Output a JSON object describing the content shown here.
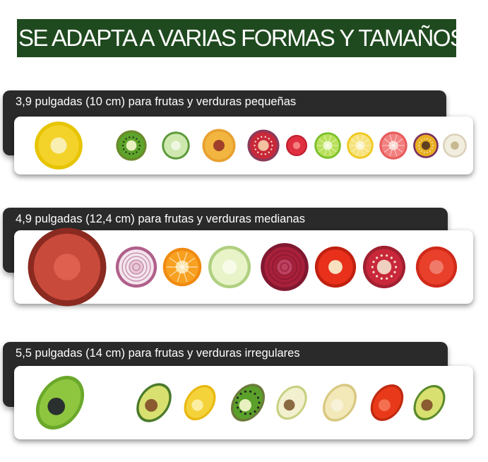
{
  "title": "SE ADAPTA A VARIAS FORMAS Y TAMAÑOS",
  "sections": [
    {
      "label": "3,9 pulgadas (10 cm) para frutas y verduras pequeñas",
      "items": [
        {
          "name": "lemon-hugger-icon",
          "fill": "#f3d22a",
          "ring": "#e7c400",
          "core": "#f8efb0"
        },
        {
          "name": "kiwi-slice-icon",
          "fill": "#5da42a",
          "ring": "#6b8a2a",
          "core": "#e8f0c0"
        },
        {
          "name": "cucumber-slice-icon",
          "fill": "#cfe8b0",
          "ring": "#5c9a3a",
          "core": "#eef7e0"
        },
        {
          "name": "peach-half-icon",
          "fill": "#f2b640",
          "ring": "#e8a030",
          "core": "#a0402a"
        },
        {
          "name": "fig-half-icon",
          "fill": "#c8283a",
          "ring": "#8a3a5a",
          "core": "#f3c0a0"
        },
        {
          "name": "strawberry-icon",
          "fill": "#e03040",
          "ring": "#c02030",
          "core": "#f58080"
        },
        {
          "name": "lime-slice-icon",
          "fill": "#b8e05a",
          "ring": "#7abf2a",
          "core": "#e8f6c0"
        },
        {
          "name": "lemon-slice-icon",
          "fill": "#f7e27a",
          "ring": "#f0c820",
          "core": "#fbf2c0"
        },
        {
          "name": "grapefruit-slice-icon",
          "fill": "#f28080",
          "ring": "#e85a5a",
          "core": "#fbd0c8"
        },
        {
          "name": "passion-fruit-icon",
          "fill": "#e8b020",
          "ring": "#7a3060",
          "core": "#604020"
        },
        {
          "name": "garlic-icon",
          "fill": "#f2eedf",
          "ring": "#d8d0b8",
          "core": "#c8b890"
        }
      ]
    },
    {
      "label": "4,9 pulgadas (12,4 cm) para frutas y verduras medianas",
      "items": [
        {
          "name": "onion-tomato-hugger-icon",
          "fill": "#c84a3a",
          "ring": "#8a2a20",
          "core": "#e06050"
        },
        {
          "name": "red-onion-slice-icon",
          "fill": "#f4e6ee",
          "ring": "#b0608a",
          "core": "#e8c8d8"
        },
        {
          "name": "orange-slice-icon",
          "fill": "#f8a020",
          "ring": "#f08a10",
          "core": "#fde0a0"
        },
        {
          "name": "apple-slice-icon",
          "fill": "#e8f4c8",
          "ring": "#b0d080",
          "core": "#f7fbe8"
        },
        {
          "name": "beet-slice-icon",
          "fill": "#a8203a",
          "ring": "#801830",
          "core": "#c04060"
        },
        {
          "name": "red-pepper-slice-icon",
          "fill": "#e8301a",
          "ring": "#c02010",
          "core": "#f8e0c0"
        },
        {
          "name": "pomegranate-icon",
          "fill": "#c8283a",
          "ring": "#a02030",
          "core": "#f0d0c0"
        },
        {
          "name": "tomato-half-icon",
          "fill": "#e8402a",
          "ring": "#d02a1a",
          "core": "#f07a6a"
        }
      ]
    },
    {
      "label": "5,5 pulgadas (14 cm) para frutas y verduras irregulares",
      "items": [
        {
          "name": "avocado-hugger-icon",
          "fill": "#8ec63f",
          "ring": "#6aa82a",
          "core": "#2a3030"
        },
        {
          "name": "avocado-half-icon",
          "fill": "#d8e070",
          "ring": "#4a7a2a",
          "core": "#8a5a30"
        },
        {
          "name": "lemon-wedge-icon",
          "fill": "#f4d23a",
          "ring": "#e8b810",
          "core": "#fbeea0"
        },
        {
          "name": "kiwi-half-icon",
          "fill": "#5aa02a",
          "ring": "#6b7a3a",
          "core": "#e8f0c0"
        },
        {
          "name": "pear-slice-icon",
          "fill": "#f3f0d0",
          "ring": "#c8d080",
          "core": "#8a6a40"
        },
        {
          "name": "pear-half-icon",
          "fill": "#f2e8b8",
          "ring": "#d8c880",
          "core": "#f8f2d8"
        },
        {
          "name": "red-pepper-half-icon",
          "fill": "#e83a1a",
          "ring": "#c02a10",
          "core": "#f57050"
        },
        {
          "name": "avocado-slice-icon",
          "fill": "#d8e070",
          "ring": "#5a8a2a",
          "core": "#8a5a30"
        }
      ]
    }
  ]
}
